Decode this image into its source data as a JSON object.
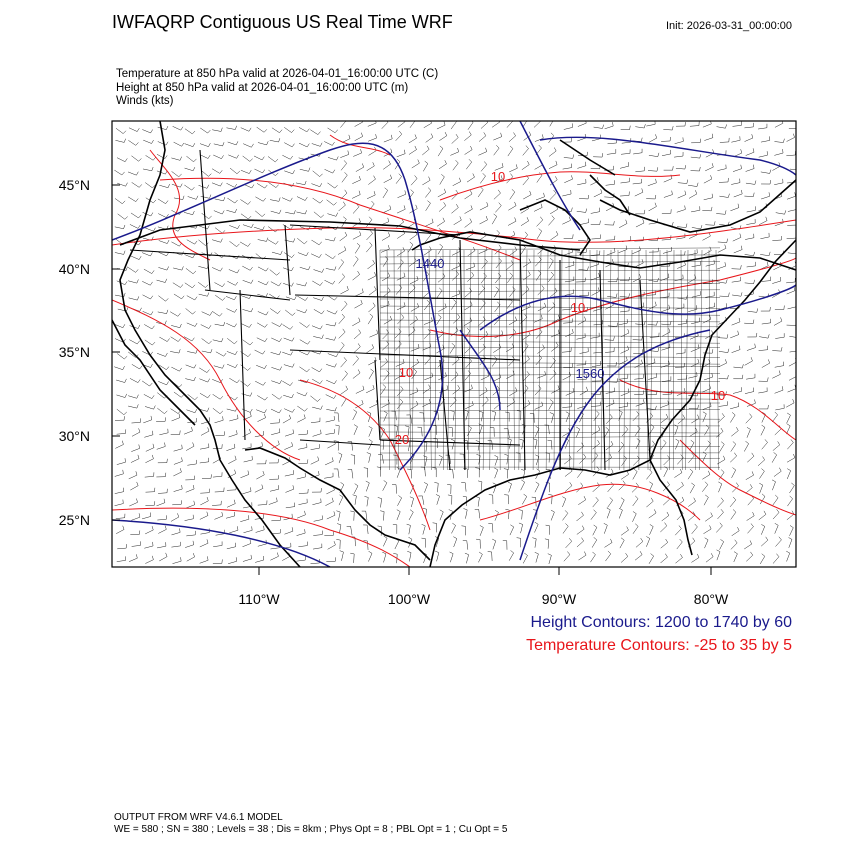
{
  "header": {
    "title": "IWFAQRP Contiguous US Real Time WRF",
    "init": "Init: 2026-03-31_00:00:00"
  },
  "fields": [
    "Temperature at 850 hPa valid at 2026-04-01_16:00:00 UTC   (C)",
    "Height at 850 hPa valid at 2026-04-01_16:00:00 UTC   (m)",
    "Winds   (kts)"
  ],
  "axes": {
    "lat_labels": [
      "45°N",
      "40°N",
      "35°N",
      "30°N",
      "25°N"
    ],
    "lon_labels": [
      "110°W",
      "100°W",
      "90°W",
      "80°W"
    ]
  },
  "contour_labels": {
    "height": [
      "1440",
      "1560"
    ],
    "temperature": [
      "10",
      "10",
      "10",
      "20",
      "10"
    ]
  },
  "legend": {
    "height": "Height Contours: 1200 to 1740 by 60",
    "temperature": "Temperature Contours: -25 to 35 by 5"
  },
  "colors": {
    "height_contour": "#1a1a8c",
    "temperature_contour": "#e8161b",
    "boundaries": "#000000",
    "wind_barbs": "#222222"
  },
  "footer": {
    "line1": "OUTPUT FROM WRF V4.6.1 MODEL",
    "line2": "WE = 580 ; SN = 380 ; Levels = 38 ; Dis = 8km ; Phys Opt = 8 ; PBL Opt = 1 ; Cu Opt = 5"
  }
}
